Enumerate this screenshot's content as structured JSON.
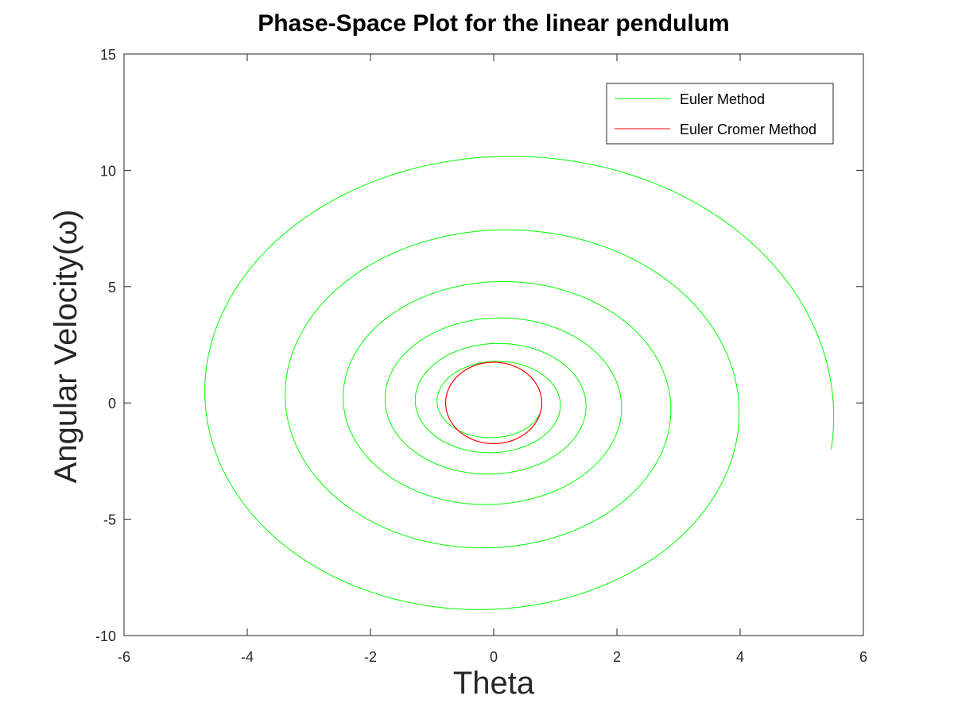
{
  "chart_data": {
    "type": "line",
    "title": "Phase-Space Plot for the linear pendulum",
    "xlabel": "Theta",
    "ylabel": "Angular Velocity(ω)",
    "xlim": [
      -6,
      6
    ],
    "ylim": [
      -10,
      15
    ],
    "xticks": [
      "-6",
      "-4",
      "-2",
      "0",
      "2",
      "4",
      "6"
    ],
    "yticks": [
      "-10",
      "-5",
      "0",
      "5",
      "10",
      "15"
    ],
    "grid": false,
    "legend_position": "top-right",
    "series": [
      {
        "name": "Euler Method",
        "color": "#00ff00",
        "shape": "outward spiral",
        "start": {
          "theta": 0.78,
          "omega": 0.0
        },
        "end": {
          "theta": 5.47,
          "omega": -2.1
        },
        "turns": 7
      },
      {
        "name": "Euler Cromer Method",
        "color": "#ff0000",
        "shape": "closed ellipse",
        "amplitude_theta": 0.78,
        "amplitude_omega": 1.75,
        "center": {
          "theta": 0.0,
          "omega": 0.0
        }
      }
    ],
    "legend": [
      {
        "label": "Euler Method",
        "color": "#00ff00"
      },
      {
        "label": "Euler Cromer Method",
        "color": "#ff0000"
      }
    ]
  }
}
